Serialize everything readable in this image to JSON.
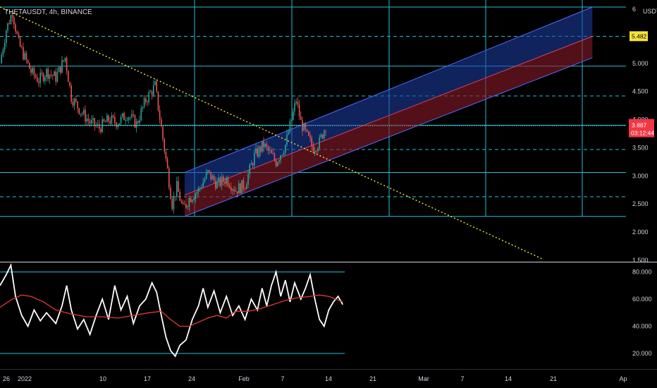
{
  "chart_data": [
    {
      "type": "candlestick",
      "title": "THETAUSDT, 4h, BINANCE",
      "currency": "USDT",
      "ylim": [
        1.5,
        6.0
      ],
      "yticks": [
        1.5,
        2.0,
        2.5,
        3.0,
        3.5,
        4.0,
        4.5,
        5.0,
        5.5,
        6.0
      ],
      "ytick_labels": [
        "1.500",
        "2.000",
        "2.500",
        "3.000",
        "3.500",
        "4.000",
        "4.500",
        "5.000",
        "",
        "6"
      ],
      "xlabels": [
        "26",
        "2022",
        "10",
        "17",
        "24",
        "Feb",
        "7",
        "14",
        "21",
        "Mar",
        "7",
        "14",
        "21",
        "Ap"
      ],
      "price_badges": [
        {
          "value": "5.482",
          "color": "#f5e33b"
        },
        {
          "value": "3.887",
          "sub": "03:12:44",
          "color": "#f23645"
        }
      ],
      "close_series": [
        {
          "i": 0,
          "v": 5.0
        },
        {
          "i": 4,
          "v": 5.6
        },
        {
          "i": 8,
          "v": 5.92
        },
        {
          "i": 12,
          "v": 5.35
        },
        {
          "i": 16,
          "v": 5.1
        },
        {
          "i": 20,
          "v": 4.85
        },
        {
          "i": 25,
          "v": 4.7
        },
        {
          "i": 30,
          "v": 4.85
        },
        {
          "i": 36,
          "v": 4.75
        },
        {
          "i": 42,
          "v": 5.1
        },
        {
          "i": 46,
          "v": 4.4
        },
        {
          "i": 52,
          "v": 4.15
        },
        {
          "i": 58,
          "v": 3.95
        },
        {
          "i": 64,
          "v": 3.85
        },
        {
          "i": 70,
          "v": 4.0
        },
        {
          "i": 76,
          "v": 3.95
        },
        {
          "i": 82,
          "v": 4.1
        },
        {
          "i": 88,
          "v": 3.92
        },
        {
          "i": 94,
          "v": 4.35
        },
        {
          "i": 100,
          "v": 4.6
        },
        {
          "i": 104,
          "v": 3.85
        },
        {
          "i": 108,
          "v": 3.1
        },
        {
          "i": 111,
          "v": 2.5
        },
        {
          "i": 114,
          "v": 2.8
        },
        {
          "i": 118,
          "v": 2.4
        },
        {
          "i": 122,
          "v": 2.6
        },
        {
          "i": 128,
          "v": 2.75
        },
        {
          "i": 134,
          "v": 3.05
        },
        {
          "i": 140,
          "v": 2.85
        },
        {
          "i": 146,
          "v": 2.95
        },
        {
          "i": 152,
          "v": 2.75
        },
        {
          "i": 158,
          "v": 2.85
        },
        {
          "i": 164,
          "v": 3.35
        },
        {
          "i": 170,
          "v": 3.55
        },
        {
          "i": 174,
          "v": 3.4
        },
        {
          "i": 178,
          "v": 3.25
        },
        {
          "i": 184,
          "v": 3.55
        },
        {
          "i": 188,
          "v": 4.0
        },
        {
          "i": 191,
          "v": 4.35
        },
        {
          "i": 194,
          "v": 3.95
        },
        {
          "i": 198,
          "v": 3.7
        },
        {
          "i": 202,
          "v": 3.5
        },
        {
          "i": 206,
          "v": 3.6
        },
        {
          "i": 210,
          "v": 3.9
        }
      ],
      "horizontal_levels": [
        {
          "value": 6.0,
          "style": "solid"
        },
        {
          "value": 5.48,
          "style": "dashed"
        },
        {
          "value": 4.95,
          "style": "solid"
        },
        {
          "value": 4.42,
          "style": "dashed"
        },
        {
          "value": 3.9,
          "style": "solid"
        },
        {
          "value": 3.47,
          "style": "dashed"
        },
        {
          "value": 3.06,
          "style": "solid"
        },
        {
          "value": 2.63,
          "style": "dashed"
        },
        {
          "value": 2.28,
          "style": "solid"
        }
      ],
      "trendline": {
        "from": {
          "i": 0,
          "v": 6.0
        },
        "to": {
          "i": 350,
          "v": 1.52
        },
        "style": "dotted",
        "color": "#f5e33b"
      },
      "channel": {
        "start_i": 119,
        "end_i": 382,
        "upper": [
          3.06,
          6.0
        ],
        "middle": [
          2.66,
          5.48
        ],
        "lower": [
          2.28,
          5.1
        ],
        "upper_fill": "#1e3fa8",
        "lower_fill": "#8b1a2a",
        "edge": "#4d6cff"
      }
    },
    {
      "type": "line",
      "indicator": "RSI",
      "ylim": [
        15,
        88
      ],
      "yticks": [
        20,
        40,
        60,
        80
      ],
      "ytick_labels": [
        "20.000",
        "40.000",
        "60.000",
        "80.000"
      ],
      "bands": [
        80,
        20
      ],
      "series": [
        {
          "color": "#ffffff",
          "points": [
            {
              "i": 0,
              "v": 70
            },
            {
              "i": 4,
              "v": 78
            },
            {
              "i": 7,
              "v": 85
            },
            {
              "i": 10,
              "v": 62
            },
            {
              "i": 14,
              "v": 48
            },
            {
              "i": 18,
              "v": 40
            },
            {
              "i": 22,
              "v": 52
            },
            {
              "i": 26,
              "v": 44
            },
            {
              "i": 30,
              "v": 50
            },
            {
              "i": 36,
              "v": 42
            },
            {
              "i": 40,
              "v": 55
            },
            {
              "i": 43,
              "v": 70
            },
            {
              "i": 46,
              "v": 52
            },
            {
              "i": 50,
              "v": 38
            },
            {
              "i": 54,
              "v": 45
            },
            {
              "i": 58,
              "v": 34
            },
            {
              "i": 62,
              "v": 48
            },
            {
              "i": 66,
              "v": 60
            },
            {
              "i": 70,
              "v": 45
            },
            {
              "i": 74,
              "v": 70
            },
            {
              "i": 78,
              "v": 52
            },
            {
              "i": 82,
              "v": 62
            },
            {
              "i": 86,
              "v": 42
            },
            {
              "i": 90,
              "v": 55
            },
            {
              "i": 94,
              "v": 60
            },
            {
              "i": 98,
              "v": 72
            },
            {
              "i": 101,
              "v": 65
            },
            {
              "i": 104,
              "v": 48
            },
            {
              "i": 107,
              "v": 32
            },
            {
              "i": 110,
              "v": 22
            },
            {
              "i": 113,
              "v": 18
            },
            {
              "i": 116,
              "v": 26
            },
            {
              "i": 120,
              "v": 30
            },
            {
              "i": 124,
              "v": 45
            },
            {
              "i": 128,
              "v": 55
            },
            {
              "i": 131,
              "v": 68
            },
            {
              "i": 134,
              "v": 54
            },
            {
              "i": 138,
              "v": 66
            },
            {
              "i": 142,
              "v": 50
            },
            {
              "i": 146,
              "v": 62
            },
            {
              "i": 150,
              "v": 48
            },
            {
              "i": 154,
              "v": 55
            },
            {
              "i": 158,
              "v": 45
            },
            {
              "i": 162,
              "v": 60
            },
            {
              "i": 166,
              "v": 52
            },
            {
              "i": 169,
              "v": 68
            },
            {
              "i": 172,
              "v": 55
            },
            {
              "i": 175,
              "v": 70
            },
            {
              "i": 178,
              "v": 80
            },
            {
              "i": 181,
              "v": 62
            },
            {
              "i": 184,
              "v": 74
            },
            {
              "i": 187,
              "v": 58
            },
            {
              "i": 190,
              "v": 72
            },
            {
              "i": 194,
              "v": 60
            },
            {
              "i": 197,
              "v": 68
            },
            {
              "i": 200,
              "v": 78
            },
            {
              "i": 203,
              "v": 60
            },
            {
              "i": 206,
              "v": 45
            },
            {
              "i": 209,
              "v": 40
            },
            {
              "i": 212,
              "v": 52
            },
            {
              "i": 215,
              "v": 58
            },
            {
              "i": 218,
              "v": 62
            },
            {
              "i": 221,
              "v": 56
            }
          ]
        },
        {
          "color": "#e03a3a",
          "points": [
            {
              "i": 0,
              "v": 54
            },
            {
              "i": 8,
              "v": 60
            },
            {
              "i": 14,
              "v": 63
            },
            {
              "i": 20,
              "v": 62
            },
            {
              "i": 28,
              "v": 58
            },
            {
              "i": 36,
              "v": 52
            },
            {
              "i": 46,
              "v": 49
            },
            {
              "i": 56,
              "v": 47
            },
            {
              "i": 66,
              "v": 47
            },
            {
              "i": 76,
              "v": 46
            },
            {
              "i": 86,
              "v": 48
            },
            {
              "i": 96,
              "v": 50
            },
            {
              "i": 104,
              "v": 51
            },
            {
              "i": 110,
              "v": 45
            },
            {
              "i": 116,
              "v": 40
            },
            {
              "i": 122,
              "v": 40
            },
            {
              "i": 128,
              "v": 43
            },
            {
              "i": 134,
              "v": 46
            },
            {
              "i": 140,
              "v": 48
            },
            {
              "i": 146,
              "v": 46
            },
            {
              "i": 152,
              "v": 51
            },
            {
              "i": 160,
              "v": 51
            },
            {
              "i": 168,
              "v": 53
            },
            {
              "i": 176,
              "v": 56
            },
            {
              "i": 184,
              "v": 59
            },
            {
              "i": 192,
              "v": 61
            },
            {
              "i": 200,
              "v": 62
            },
            {
              "i": 206,
              "v": 63
            },
            {
              "i": 212,
              "v": 62
            },
            {
              "i": 221,
              "v": 58
            }
          ]
        }
      ]
    }
  ]
}
